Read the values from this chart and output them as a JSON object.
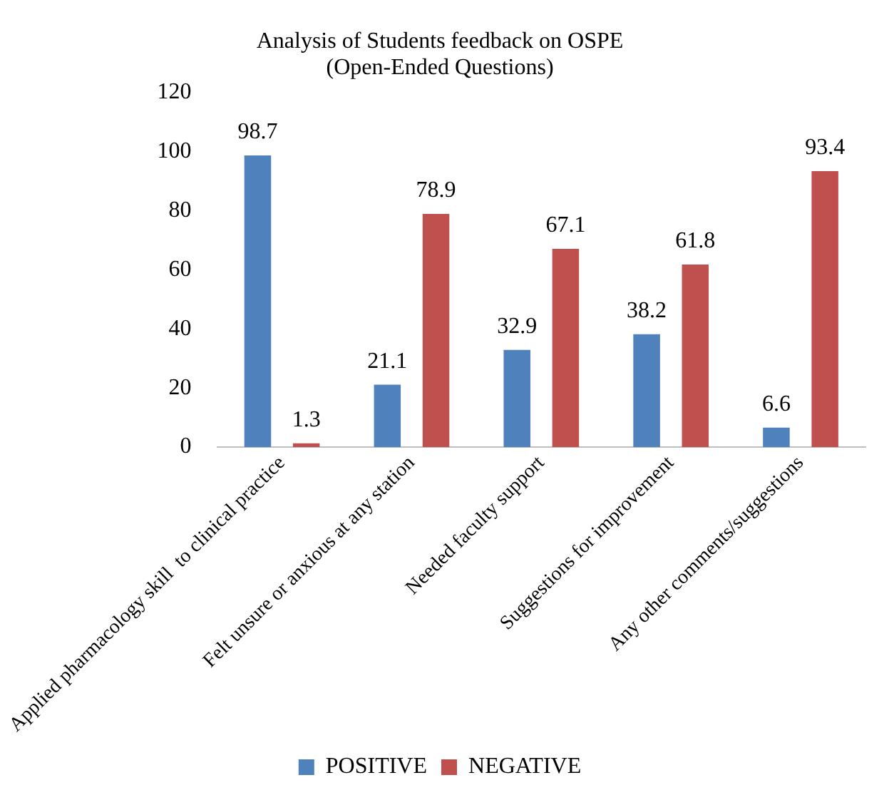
{
  "chart_data": {
    "type": "bar",
    "title": "Analysis of Students feedback on OSPE\n(Open-Ended Questions)",
    "categories": [
      "Applied pharmacology skill  to clinical practice",
      "Felt unsure or anxious at any station",
      "Needed faculty support",
      "Suggestions for improvement",
      "Any other comments/suggestions"
    ],
    "series": [
      {
        "name": "POSITIVE",
        "color": "#4f81bd",
        "values": [
          98.7,
          21.1,
          32.9,
          38.2,
          6.6
        ]
      },
      {
        "name": "NEGATIVE",
        "color": "#c0504d",
        "values": [
          1.3,
          78.9,
          67.1,
          61.8,
          93.4
        ]
      }
    ],
    "ylim": [
      0,
      120
    ],
    "yticks": [
      0,
      20,
      40,
      60,
      80,
      100,
      120
    ],
    "grid": false,
    "legend": "bottom",
    "data_labels": true
  }
}
